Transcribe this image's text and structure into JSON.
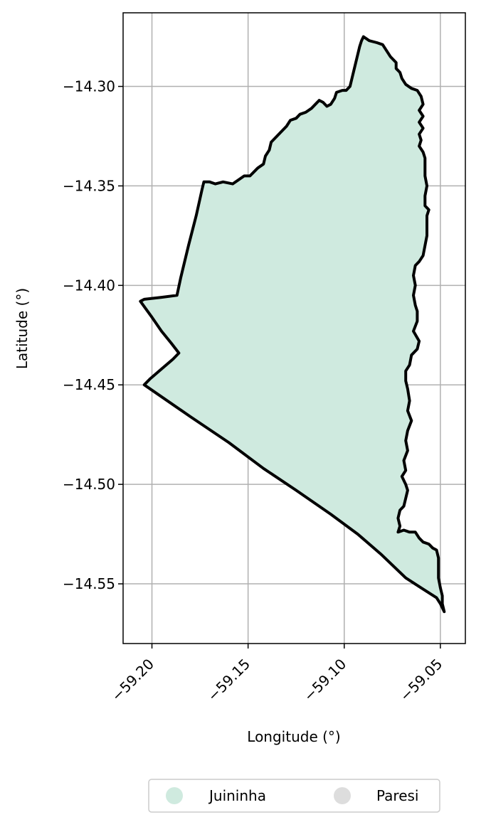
{
  "chart_data": {
    "type": "map",
    "xlabel": "Longitude (°)",
    "ylabel": "Latitude (°)",
    "xlim": [
      -59.215,
      -59.037
    ],
    "ylim": [
      -14.58,
      -14.263
    ],
    "xticks": [
      -59.2,
      -59.15,
      -59.1,
      -59.05
    ],
    "xtick_labels": [
      "−59.20",
      "−59.15",
      "−59.10",
      "−59.05"
    ],
    "yticks": [
      -14.3,
      -14.35,
      -14.4,
      -14.45,
      -14.5,
      -14.55
    ],
    "ytick_labels": [
      "−14.30",
      "−14.35",
      "−14.40",
      "−14.45",
      "−14.50",
      "−14.55"
    ],
    "grid": true,
    "legend_position": "bottom-center",
    "legend": [
      {
        "name": "Juininha",
        "color": "#cfeadf"
      },
      {
        "name": "Paresi",
        "color": "#dddddd"
      }
    ],
    "region": {
      "name": "Juininha",
      "fill": "#cfeadf",
      "outline": "#000000",
      "boundary": [
        [
          -59.09,
          -14.275
        ],
        [
          -59.087,
          -14.277
        ],
        [
          -59.083,
          -14.278
        ],
        [
          -59.08,
          -14.279
        ],
        [
          -59.078,
          -14.282
        ],
        [
          -59.076,
          -14.285
        ],
        [
          -59.073,
          -14.288
        ],
        [
          -59.073,
          -14.291
        ],
        [
          -59.071,
          -14.293
        ],
        [
          -59.07,
          -14.296
        ],
        [
          -59.068,
          -14.299
        ],
        [
          -59.065,
          -14.301
        ],
        [
          -59.062,
          -14.302
        ],
        [
          -59.06,
          -14.305
        ],
        [
          -59.059,
          -14.309
        ],
        [
          -59.061,
          -14.312
        ],
        [
          -59.059,
          -14.315
        ],
        [
          -59.061,
          -14.318
        ],
        [
          -59.059,
          -14.321
        ],
        [
          -59.061,
          -14.324
        ],
        [
          -59.06,
          -14.327
        ],
        [
          -59.061,
          -14.33
        ],
        [
          -59.059,
          -14.333
        ],
        [
          -59.058,
          -14.336
        ],
        [
          -59.058,
          -14.34
        ],
        [
          -59.058,
          -14.345
        ],
        [
          -59.057,
          -14.35
        ],
        [
          -59.058,
          -14.355
        ],
        [
          -59.058,
          -14.36
        ],
        [
          -59.056,
          -14.362
        ],
        [
          -59.057,
          -14.365
        ],
        [
          -59.057,
          -14.37
        ],
        [
          -59.057,
          -14.375
        ],
        [
          -59.058,
          -14.38
        ],
        [
          -59.059,
          -14.385
        ],
        [
          -59.061,
          -14.388
        ],
        [
          -59.063,
          -14.39
        ],
        [
          -59.064,
          -14.395
        ],
        [
          -59.063,
          -14.4
        ],
        [
          -59.064,
          -14.405
        ],
        [
          -59.063,
          -14.41
        ],
        [
          -59.062,
          -14.413
        ],
        [
          -59.062,
          -14.418
        ],
        [
          -59.064,
          -14.423
        ],
        [
          -59.061,
          -14.428
        ],
        [
          -59.062,
          -14.432
        ],
        [
          -59.065,
          -14.435
        ],
        [
          -59.066,
          -14.44
        ],
        [
          -59.068,
          -14.443
        ],
        [
          -59.068,
          -14.448
        ],
        [
          -59.067,
          -14.452
        ],
        [
          -59.066,
          -14.458
        ],
        [
          -59.067,
          -14.463
        ],
        [
          -59.065,
          -14.468
        ],
        [
          -59.067,
          -14.473
        ],
        [
          -59.068,
          -14.478
        ],
        [
          -59.067,
          -14.483
        ],
        [
          -59.069,
          -14.488
        ],
        [
          -59.068,
          -14.493
        ],
        [
          -59.07,
          -14.496
        ],
        [
          -59.068,
          -14.5
        ],
        [
          -59.067,
          -14.503
        ],
        [
          -59.068,
          -14.507
        ],
        [
          -59.069,
          -14.511
        ],
        [
          -59.071,
          -14.513
        ],
        [
          -59.072,
          -14.517
        ],
        [
          -59.071,
          -14.521
        ],
        [
          -59.072,
          -14.524
        ],
        [
          -59.069,
          -14.523
        ],
        [
          -59.066,
          -14.524
        ],
        [
          -59.063,
          -14.524
        ],
        [
          -59.061,
          -14.527
        ],
        [
          -59.059,
          -14.529
        ],
        [
          -59.056,
          -14.53
        ],
        [
          -59.054,
          -14.532
        ],
        [
          -59.052,
          -14.533
        ],
        [
          -59.051,
          -14.537
        ],
        [
          -59.051,
          -14.542
        ],
        [
          -59.051,
          -14.547
        ],
        [
          -59.05,
          -14.552
        ],
        [
          -59.049,
          -14.556
        ],
        [
          -59.049,
          -14.56
        ],
        [
          -59.048,
          -14.564
        ],
        [
          -59.05,
          -14.56
        ],
        [
          -59.052,
          -14.557
        ],
        [
          -59.06,
          -14.552
        ],
        [
          -59.068,
          -14.547
        ],
        [
          -59.081,
          -14.535
        ],
        [
          -59.093,
          -14.525
        ],
        [
          -59.107,
          -14.515
        ],
        [
          -59.125,
          -14.503
        ],
        [
          -59.142,
          -14.492
        ],
        [
          -59.16,
          -14.479
        ],
        [
          -59.18,
          -14.466
        ],
        [
          -59.204,
          -14.45
        ],
        [
          -59.201,
          -14.447
        ],
        [
          -59.195,
          -14.442
        ],
        [
          -59.189,
          -14.437
        ],
        [
          -59.186,
          -14.434
        ],
        [
          -59.19,
          -14.429
        ],
        [
          -59.195,
          -14.423
        ],
        [
          -59.2,
          -14.416
        ],
        [
          -59.203,
          -14.412
        ],
        [
          -59.206,
          -14.408
        ],
        [
          -59.204,
          -14.407
        ],
        [
          -59.195,
          -14.406
        ],
        [
          -59.187,
          -14.405
        ],
        [
          -59.185,
          -14.396
        ],
        [
          -59.181,
          -14.38
        ],
        [
          -59.177,
          -14.365
        ],
        [
          -59.174,
          -14.352
        ],
        [
          -59.173,
          -14.348
        ],
        [
          -59.17,
          -14.348
        ],
        [
          -59.167,
          -14.349
        ],
        [
          -59.163,
          -14.348
        ],
        [
          -59.158,
          -14.349
        ],
        [
          -59.155,
          -14.347
        ],
        [
          -59.152,
          -14.345
        ],
        [
          -59.149,
          -14.345
        ],
        [
          -59.147,
          -14.343
        ],
        [
          -59.145,
          -14.341
        ],
        [
          -59.142,
          -14.339
        ],
        [
          -59.141,
          -14.335
        ],
        [
          -59.139,
          -14.332
        ],
        [
          -59.138,
          -14.328
        ],
        [
          -59.135,
          -14.325
        ],
        [
          -59.133,
          -14.323
        ],
        [
          -59.13,
          -14.32
        ],
        [
          -59.128,
          -14.317
        ],
        [
          -59.125,
          -14.316
        ],
        [
          -59.123,
          -14.314
        ],
        [
          -59.12,
          -14.313
        ],
        [
          -59.117,
          -14.311
        ],
        [
          -59.115,
          -14.309
        ],
        [
          -59.113,
          -14.307
        ],
        [
          -59.111,
          -14.308
        ],
        [
          -59.109,
          -14.31
        ],
        [
          -59.107,
          -14.309
        ],
        [
          -59.105,
          -14.306
        ],
        [
          -59.104,
          -14.303
        ],
        [
          -59.101,
          -14.302
        ],
        [
          -59.099,
          -14.302
        ],
        [
          -59.097,
          -14.3
        ],
        [
          -59.096,
          -14.296
        ],
        [
          -59.095,
          -14.292
        ],
        [
          -59.094,
          -14.288
        ],
        [
          -59.093,
          -14.284
        ],
        [
          -59.092,
          -14.28
        ],
        [
          -59.091,
          -14.277
        ],
        [
          -59.09,
          -14.275
        ]
      ]
    }
  }
}
